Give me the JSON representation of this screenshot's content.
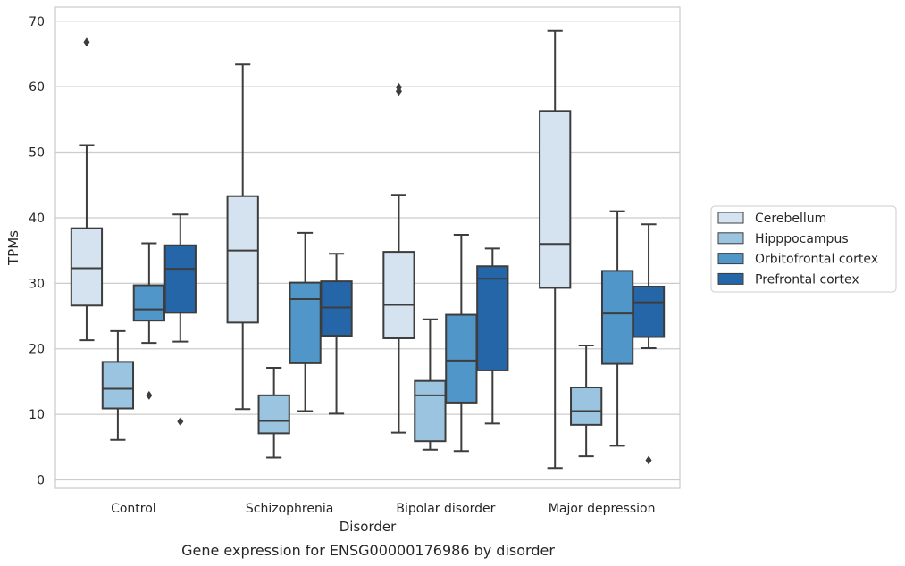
{
  "chart_data": {
    "type": "box",
    "caption": "Gene expression for ENSG00000176986 by disorder",
    "xlabel": "Disorder",
    "ylabel": "TPMs",
    "ylim": [
      -1.5,
      72
    ],
    "yticks": [
      0,
      10,
      20,
      30,
      40,
      50,
      60,
      70
    ],
    "categories": [
      "Control",
      "Schizophrenia",
      "Bipolar disorder",
      "Major depression"
    ],
    "grid": "horizontal",
    "legend_position": "right",
    "series": [
      {
        "name": "Cerebellum",
        "color": "#d5e3f1",
        "boxes": [
          {
            "whislo": 21.3,
            "q1": 26.6,
            "med": 32.3,
            "q3": 38.4,
            "whishi": 51.1,
            "fliers": [
              66.8
            ]
          },
          {
            "whislo": 10.8,
            "q1": 24.0,
            "med": 35.0,
            "q3": 43.3,
            "whishi": 63.4,
            "fliers": []
          },
          {
            "whislo": 7.2,
            "q1": 21.6,
            "med": 26.7,
            "q3": 34.8,
            "whishi": 43.5,
            "fliers": [
              59.3,
              59.9
            ]
          },
          {
            "whislo": 1.8,
            "q1": 29.3,
            "med": 36.0,
            "q3": 56.3,
            "whishi": 68.5,
            "fliers": []
          }
        ]
      },
      {
        "name": "Hipppocampus",
        "color": "#9ac4e0",
        "boxes": [
          {
            "whislo": 6.1,
            "q1": 10.9,
            "med": 13.9,
            "q3": 18.0,
            "whishi": 22.7,
            "fliers": []
          },
          {
            "whislo": 3.4,
            "q1": 7.1,
            "med": 9.0,
            "q3": 12.9,
            "whishi": 17.1,
            "fliers": []
          },
          {
            "whislo": 4.6,
            "q1": 5.9,
            "med": 12.9,
            "q3": 15.1,
            "whishi": 24.5,
            "fliers": []
          },
          {
            "whislo": 3.6,
            "q1": 8.4,
            "med": 10.5,
            "q3": 14.1,
            "whishi": 20.5,
            "fliers": []
          }
        ]
      },
      {
        "name": "Orbitofrontal cortex",
        "color": "#5096c8",
        "boxes": [
          {
            "whislo": 20.9,
            "q1": 24.3,
            "med": 26.0,
            "q3": 29.7,
            "whishi": 36.1,
            "fliers": [
              12.9
            ]
          },
          {
            "whislo": 10.5,
            "q1": 17.8,
            "med": 27.6,
            "q3": 30.1,
            "whishi": 37.7,
            "fliers": []
          },
          {
            "whislo": 4.4,
            "q1": 11.8,
            "med": 18.2,
            "q3": 25.2,
            "whishi": 37.4,
            "fliers": []
          },
          {
            "whislo": 5.2,
            "q1": 17.7,
            "med": 25.4,
            "q3": 31.9,
            "whishi": 41.0,
            "fliers": []
          }
        ]
      },
      {
        "name": "Prefrontal cortex",
        "color": "#2566a9",
        "boxes": [
          {
            "whislo": 21.1,
            "q1": 25.5,
            "med": 32.2,
            "q3": 35.8,
            "whishi": 40.5,
            "fliers": [
              8.9
            ]
          },
          {
            "whislo": 10.1,
            "q1": 22.0,
            "med": 26.3,
            "q3": 30.3,
            "whishi": 34.5,
            "fliers": []
          },
          {
            "whislo": 8.6,
            "q1": 16.7,
            "med": 30.7,
            "q3": 32.6,
            "whishi": 35.3,
            "fliers": []
          },
          {
            "whislo": 20.1,
            "q1": 21.8,
            "med": 27.1,
            "q3": 29.5,
            "whishi": 39.0,
            "fliers": [
              3.0
            ]
          }
        ]
      }
    ]
  }
}
